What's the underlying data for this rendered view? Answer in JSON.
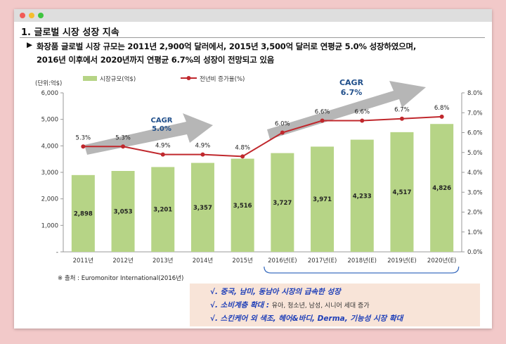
{
  "heading": "1. 글로벌 시장 성장 지속",
  "summary": {
    "bullet": "▶",
    "line1": "화장품 글로벌 시장 규모는 2011년 2,900억 달러에서, 2015년 3,500억 달러로 연평균 5.0% 성장하였으며,",
    "line2": "2016년 이후에서 2020년까지 연평균 6.7%의 성장이 전망되고 있음"
  },
  "colors": {
    "bar": "#b6d486",
    "line": "#c0282d",
    "arrow": "#a9a9a9",
    "cagr": "#1f4e8a",
    "note_bg": "#f8e4d8",
    "note_text": "#1f3fb8"
  },
  "chart_data": {
    "type": "bar",
    "unit_label": "(단위:억$)",
    "categories": [
      "2011년",
      "2012년",
      "2013년",
      "2014년",
      "2015년",
      "2016년(E)",
      "2017년(E)",
      "2018년(E)",
      "2019년(E)",
      "2020년(E)"
    ],
    "series": [
      {
        "name": "시장규모(억$)",
        "type": "bar",
        "axis": "left",
        "values": [
          2898,
          3053,
          3201,
          3357,
          3516,
          3727,
          3971,
          4233,
          4517,
          4826
        ],
        "labels": [
          "2,898",
          "3,053",
          "3,201",
          "3,357",
          "3,516",
          "3,727",
          "3,971",
          "4,233",
          "4,517",
          "4,826"
        ]
      },
      {
        "name": "전년비 증가율(%)",
        "type": "line",
        "axis": "right",
        "values": [
          5.3,
          5.3,
          4.9,
          4.9,
          4.8,
          6.0,
          6.6,
          6.6,
          6.7,
          6.8
        ],
        "labels": [
          "5.3%",
          "5.3%",
          "4.9%",
          "4.9%",
          "4.8%",
          "6.0%",
          "6.6%",
          "6.6%",
          "6.7%",
          "6.8%"
        ]
      }
    ],
    "y_left": {
      "min": 0,
      "max": 6000,
      "ticks": [
        "-",
        "1,000",
        "2,000",
        "3,000",
        "4,000",
        "5,000",
        "6,000"
      ]
    },
    "y_right": {
      "min": 0,
      "max": 8,
      "ticks": [
        "0.0%",
        "1.0%",
        "2.0%",
        "3.0%",
        "4.0%",
        "5.0%",
        "6.0%",
        "7.0%",
        "8.0%"
      ]
    },
    "annotations": [
      {
        "text": "CAGR",
        "value": "5.0%"
      },
      {
        "text": "CAGR",
        "value": "6.7%"
      }
    ],
    "grid": false,
    "legend": "top-left"
  },
  "source": "※ 출처 : Euromonitor International(2016년)",
  "notes": [
    {
      "check": "√.",
      "main": "중국, 남미, 동남아 시장의 급속한 성장",
      "sub": ""
    },
    {
      "check": "√.",
      "main": "소비계층 확대 :",
      "sub": "유아, 청소년, 남성, 시니어 세대 증가"
    },
    {
      "check": "√.",
      "main": "스킨케어 외 색조, 헤어&바디, Derma, 기능성 시장 확대",
      "sub": ""
    }
  ]
}
